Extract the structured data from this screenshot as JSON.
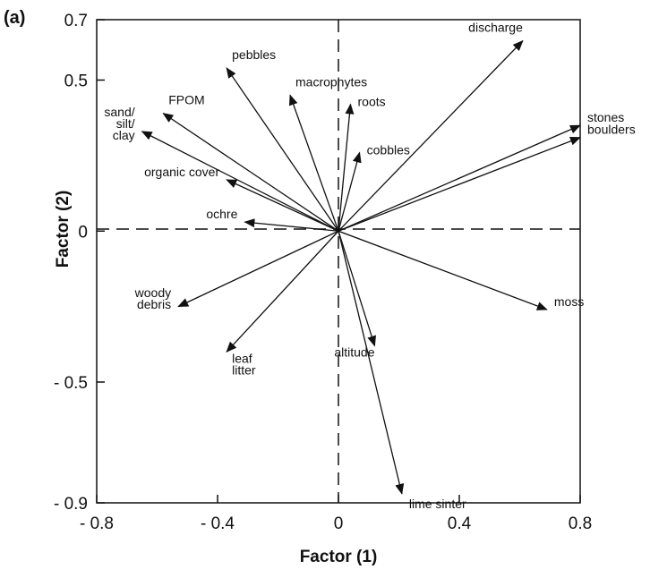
{
  "panel_label": "(a)",
  "chart_data": {
    "type": "scatter",
    "subtype": "biplot-vectors",
    "panel": "(a)",
    "xlabel": "Factor (1)",
    "ylabel": "Factor (2)",
    "xlim": [
      -0.8,
      0.8
    ],
    "ylim": [
      -0.9,
      0.7
    ],
    "x_ticks": [
      {
        "value": -0.8,
        "label": "- 0.8"
      },
      {
        "value": -0.4,
        "label": "- 0.4"
      },
      {
        "value": 0,
        "label": "0"
      },
      {
        "value": 0.4,
        "label": "0.4"
      },
      {
        "value": 0.8,
        "label": "0.8"
      }
    ],
    "y_ticks": [
      {
        "value": 0.7,
        "label": "0.7"
      },
      {
        "value": 0.5,
        "label": "0.5"
      },
      {
        "value": 0,
        "label": "0"
      },
      {
        "value": -0.5,
        "label": "- 0.5"
      },
      {
        "value": -0.9,
        "label": "- 0.9"
      }
    ],
    "zero_lines": "dashed",
    "grid": false,
    "series": [
      {
        "label": [
          "discharge"
        ],
        "x": 0.61,
        "y": 0.63
      },
      {
        "label": [
          "stones"
        ],
        "x": 0.8,
        "y": 0.35
      },
      {
        "label": [
          "boulders"
        ],
        "x": 0.8,
        "y": 0.31
      },
      {
        "label": [
          "moss"
        ],
        "x": 0.69,
        "y": -0.26
      },
      {
        "label": [
          "roots"
        ],
        "x": 0.04,
        "y": 0.42
      },
      {
        "label": [
          "cobbles"
        ],
        "x": 0.07,
        "y": 0.26
      },
      {
        "label": [
          "macrophytes"
        ],
        "x": -0.16,
        "y": 0.45
      },
      {
        "label": [
          "pebbles"
        ],
        "x": -0.37,
        "y": 0.54
      },
      {
        "label": [
          "FPOM"
        ],
        "x": -0.58,
        "y": 0.39
      },
      {
        "label": [
          "sand/",
          "silt/",
          "clay"
        ],
        "x": -0.65,
        "y": 0.33
      },
      {
        "label": [
          "organic cover"
        ],
        "x": -0.37,
        "y": 0.17
      },
      {
        "label": [
          "ochre"
        ],
        "x": -0.31,
        "y": 0.03
      },
      {
        "label": [
          "woody",
          "debris"
        ],
        "x": -0.53,
        "y": -0.25
      },
      {
        "label": [
          "leaf",
          "litter"
        ],
        "x": -0.37,
        "y": -0.4
      },
      {
        "label": [
          "altitude"
        ],
        "x": 0.12,
        "y": -0.38
      },
      {
        "label": [
          "lime sinter"
        ],
        "x": 0.21,
        "y": -0.87
      }
    ]
  }
}
